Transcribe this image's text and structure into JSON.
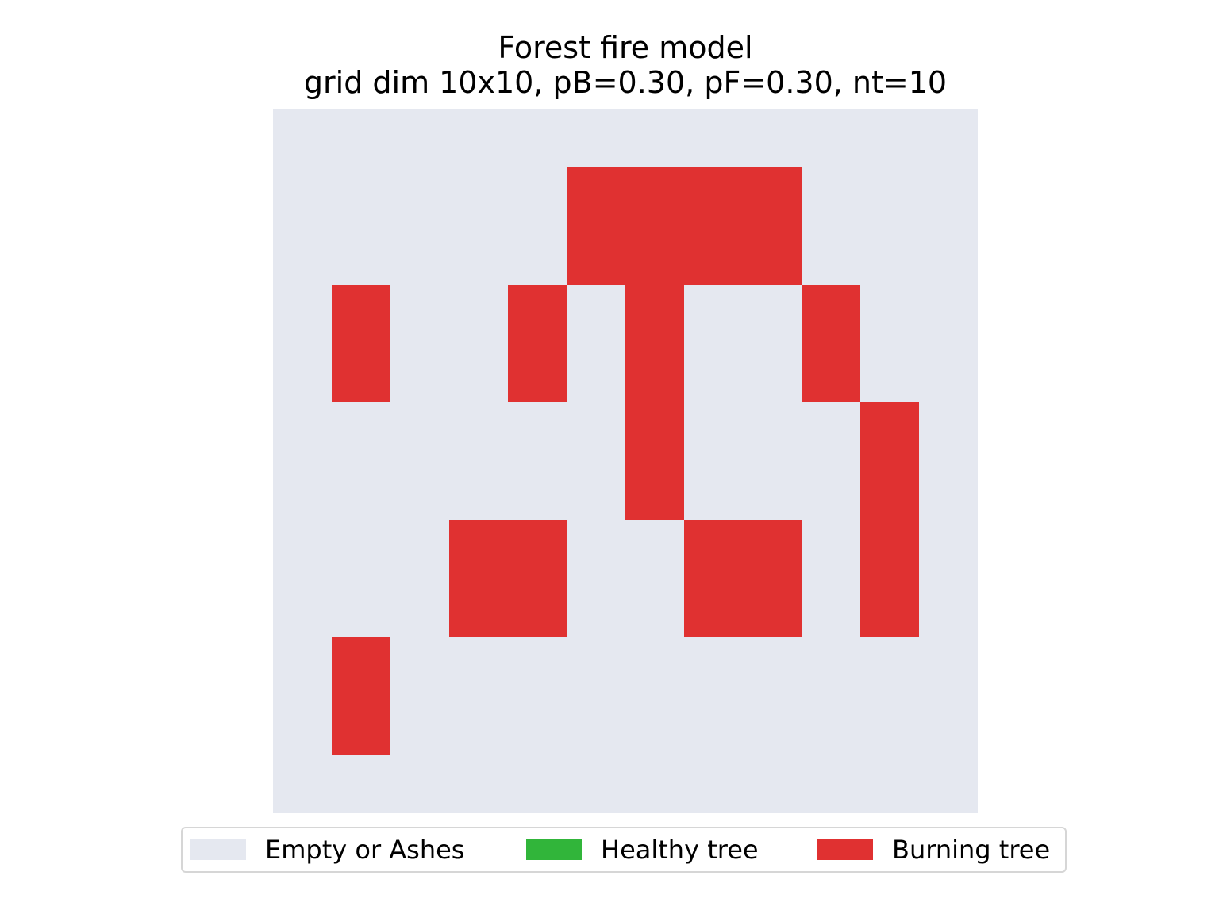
{
  "colors": {
    "empty": "#e5e8f0",
    "healthy": "#31b53a",
    "burning": "#e03131"
  },
  "chart_data": {
    "type": "heatmap",
    "title": "Forest fire model",
    "subtitle": "grid dim 10x10, pB=0.30, pF=0.30, nt=10",
    "xlabel": "",
    "ylabel": "",
    "grid": false,
    "legend_position": "bottom",
    "legend": [
      {
        "label": "Empty or Ashes",
        "state": 0,
        "color": "#e5e8f0"
      },
      {
        "label": "Healthy tree",
        "state": 1,
        "color": "#31b53a"
      },
      {
        "label": "Burning tree",
        "state": 2,
        "color": "#e03131"
      }
    ],
    "rows": 12,
    "cols": 12,
    "values": [
      [
        0,
        0,
        0,
        0,
        0,
        0,
        0,
        0,
        0,
        0,
        0,
        0
      ],
      [
        0,
        0,
        0,
        0,
        0,
        2,
        2,
        2,
        2,
        0,
        0,
        0
      ],
      [
        0,
        0,
        0,
        0,
        0,
        2,
        2,
        2,
        2,
        0,
        0,
        0
      ],
      [
        0,
        2,
        0,
        0,
        2,
        0,
        2,
        0,
        0,
        2,
        0,
        0
      ],
      [
        0,
        2,
        0,
        0,
        2,
        0,
        2,
        0,
        0,
        2,
        0,
        0
      ],
      [
        0,
        0,
        0,
        0,
        0,
        0,
        2,
        0,
        0,
        0,
        2,
        0
      ],
      [
        0,
        0,
        0,
        0,
        0,
        0,
        2,
        0,
        0,
        0,
        2,
        0
      ],
      [
        0,
        0,
        0,
        2,
        2,
        0,
        0,
        2,
        2,
        0,
        2,
        0
      ],
      [
        0,
        0,
        0,
        2,
        2,
        0,
        0,
        2,
        2,
        0,
        2,
        0
      ],
      [
        0,
        2,
        0,
        0,
        0,
        0,
        0,
        0,
        0,
        0,
        0,
        0
      ],
      [
        0,
        2,
        0,
        0,
        0,
        0,
        0,
        0,
        0,
        0,
        0,
        0
      ],
      [
        0,
        0,
        0,
        0,
        0,
        0,
        0,
        0,
        0,
        0,
        0,
        0
      ]
    ]
  }
}
